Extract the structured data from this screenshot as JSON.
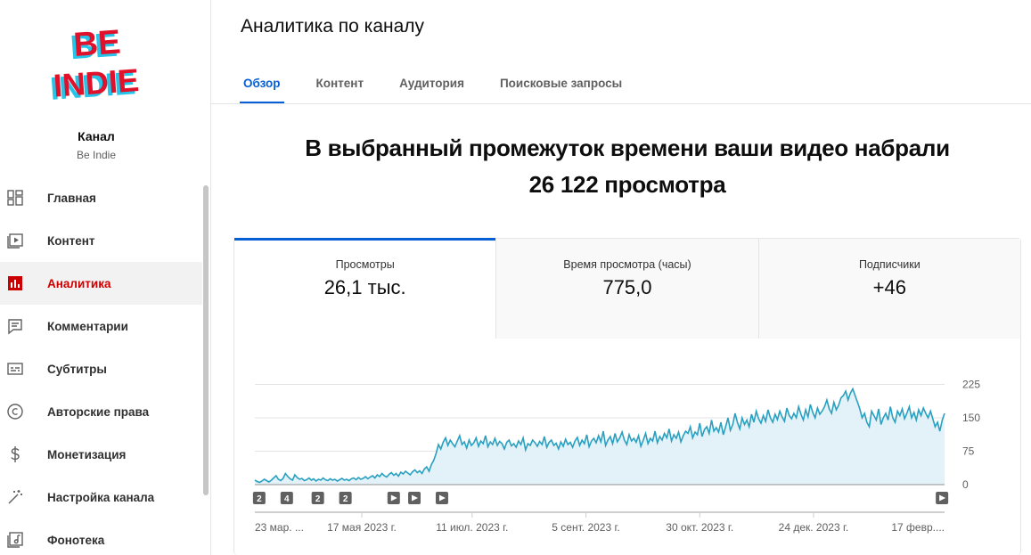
{
  "channel": {
    "logo_text_line1": "BE",
    "logo_text_line2": "INDIE",
    "label": "Канал",
    "name": "Be Indie"
  },
  "sidebar": {
    "items": [
      {
        "label": "Главная",
        "icon": "dashboard-icon",
        "active": false
      },
      {
        "label": "Контент",
        "icon": "content-icon",
        "active": false
      },
      {
        "label": "Аналитика",
        "icon": "analytics-icon",
        "active": true
      },
      {
        "label": "Комментарии",
        "icon": "comments-icon",
        "active": false
      },
      {
        "label": "Субтитры",
        "icon": "subtitles-icon",
        "active": false
      },
      {
        "label": "Авторские права",
        "icon": "copyright-icon",
        "active": false
      },
      {
        "label": "Монетизация",
        "icon": "dollar-icon",
        "active": false
      },
      {
        "label": "Настройка канала",
        "icon": "magic-wand-icon",
        "active": false
      },
      {
        "label": "Фонотека",
        "icon": "audio-library-icon",
        "active": false
      }
    ]
  },
  "header": {
    "title": "Аналитика по каналу",
    "tabs": [
      {
        "label": "Обзор",
        "active": true
      },
      {
        "label": "Контент",
        "active": false
      },
      {
        "label": "Аудитория",
        "active": false
      },
      {
        "label": "Поисковые запросы",
        "active": false
      }
    ]
  },
  "summary": {
    "line1": "В выбранный промежуток времени ваши видео набрали",
    "line2": "26 122 просмотра"
  },
  "metrics": [
    {
      "label": "Просмотры",
      "value": "26,1 тыс.",
      "active": true
    },
    {
      "label": "Время просмотра (часы)",
      "value": "775,0",
      "active": false
    },
    {
      "label": "Подписчики",
      "value": "+46",
      "active": false
    }
  ],
  "colors": {
    "accent": "#065fd4",
    "active_nav": "#cc0000",
    "line": "#2aa0c0",
    "area": "#e2f2f8"
  },
  "chart_data": {
    "type": "area",
    "y_ticks": [
      0,
      75,
      150,
      225
    ],
    "ylim": [
      0,
      240
    ],
    "x_tick_labels": [
      "23 мар. ...",
      "17 мая 2023 г.",
      "11 июл. 2023 г.",
      "5 сент. 2023 г.",
      "30 окт. 2023 г.",
      "24 дек. 2023 г.",
      "17 февр...."
    ],
    "grid": true,
    "video_markers": [
      {
        "label": "2",
        "position": 0.005
      },
      {
        "label": "4",
        "position": 0.045
      },
      {
        "label": "2",
        "position": 0.09
      },
      {
        "label": "2",
        "position": 0.13
      },
      {
        "label": "▶",
        "position": 0.2
      },
      {
        "label": "▶",
        "position": 0.23
      },
      {
        "label": "▶",
        "position": 0.27
      },
      {
        "label": "▶",
        "position": 0.995
      }
    ],
    "series": [
      {
        "values": [
          10,
          7,
          5,
          8,
          12,
          9,
          6,
          10,
          15,
          20,
          12,
          9,
          14,
          25,
          18,
          13,
          10,
          22,
          16,
          12,
          14,
          9,
          11,
          15,
          10,
          13,
          8,
          12,
          10,
          15,
          11,
          9,
          13,
          10,
          12,
          8,
          11,
          14,
          10,
          12,
          9,
          13,
          15,
          11,
          16,
          12,
          14,
          18,
          13,
          17,
          20,
          15,
          22,
          18,
          25,
          20,
          17,
          23,
          27,
          21,
          25,
          19,
          28,
          24,
          30,
          26,
          22,
          29,
          33,
          27,
          31,
          25,
          35,
          40,
          30,
          45,
          55,
          70,
          90,
          80,
          95,
          105,
          88,
          100,
          92,
          85,
          98,
          110,
          90,
          96,
          82,
          100,
          88,
          94,
          105,
          86,
          98,
          92,
          110,
          85,
          96,
          90,
          104,
          88,
          97,
          92,
          80,
          95,
          100,
          87,
          92,
          84,
          98,
          90,
          105,
          78,
          92,
          88,
          100,
          94,
          86,
          97,
          90,
          108,
          84,
          95,
          100,
          88,
          93,
          80,
          96,
          86,
          102,
          90,
          95,
          84,
          98,
          106,
          88,
          100,
          92,
          112,
          85,
          98,
          104,
          94,
          110,
          96,
          120,
          88,
          100,
          108,
          92,
          115,
          96,
          105,
          118,
          100,
          90,
          112,
          98,
          104,
          95,
          110,
          86,
          100,
          115,
          92,
          104,
          98,
          120,
          94,
          108,
          100,
          115,
          105,
          125,
          98,
          112,
          104,
          118,
          96,
          110,
          120,
          115,
          130,
          105,
          118,
          112,
          138,
          108,
          124,
          130,
          115,
          145,
          120,
          128,
          118,
          140,
          112,
          130,
          150,
          122,
          135,
          160,
          140,
          125,
          150,
          135,
          145,
          130,
          158,
          140,
          165,
          148,
          138,
          155,
          142,
          168,
          150,
          140,
          158,
          146,
          165,
          152,
          142,
          172,
          155,
          148,
          160,
          150,
          175,
          158,
          145,
          168,
          152,
          180,
          162,
          150,
          172,
          158,
          165,
          175,
          190,
          170,
          160,
          185,
          168,
          178,
          195,
          200,
          210,
          190,
          205,
          215,
          200,
          185,
          170,
          150,
          160,
          140,
          130,
          165,
          155,
          145,
          170,
          135,
          150,
          160,
          145,
          175,
          150,
          140,
          165,
          155,
          170,
          148,
          160,
          175,
          150,
          162,
          145,
          168,
          155,
          172,
          160,
          150,
          165,
          148,
          130,
          140,
          120,
          145,
          160
        ]
      }
    ]
  }
}
